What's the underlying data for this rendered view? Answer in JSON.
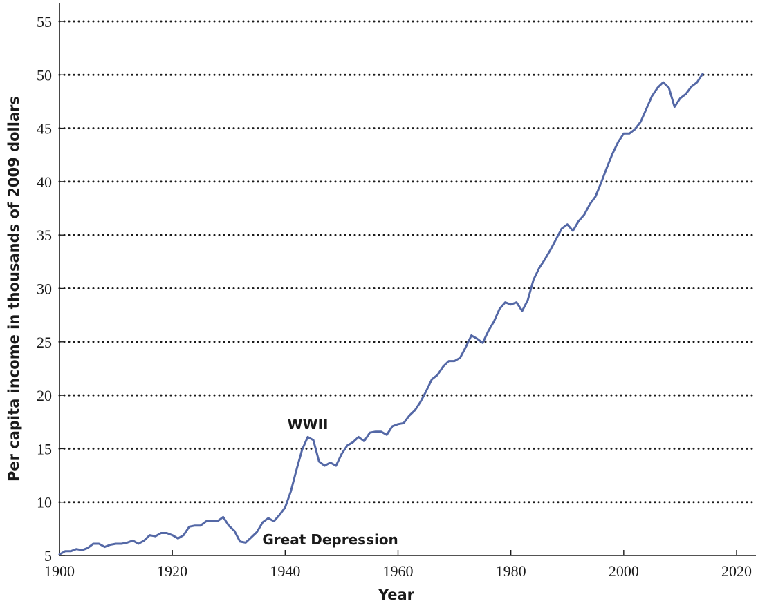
{
  "chart_data": {
    "type": "line",
    "title": "",
    "xlabel": "Year",
    "ylabel": "Per capita income in thousands of 2009 dollars",
    "xlim": [
      1900,
      2023
    ],
    "ylim": [
      5,
      56
    ],
    "x_ticks": [
      1900,
      1920,
      1940,
      1960,
      1980,
      2000,
      2020
    ],
    "y_ticks": [
      5,
      10,
      15,
      20,
      25,
      30,
      35,
      40,
      45,
      50,
      55
    ],
    "grid": "horizontal dotted",
    "line_color": "#5468a6",
    "series": [
      {
        "x": [
          1900,
          1901,
          1902,
          1903,
          1904,
          1905,
          1906,
          1907,
          1908,
          1909,
          1910,
          1911,
          1912,
          1913,
          1914,
          1915,
          1916,
          1917,
          1918,
          1919,
          1920,
          1921,
          1922,
          1923,
          1924,
          1925,
          1926,
          1927,
          1928,
          1929,
          1930,
          1931,
          1932,
          1933,
          1934,
          1935,
          1936,
          1937,
          1938,
          1939,
          1940,
          1941,
          1942,
          1943,
          1944,
          1945,
          1946,
          1947,
          1948,
          1949,
          1950,
          1951,
          1952,
          1953,
          1954,
          1955,
          1956,
          1957,
          1958,
          1959,
          1960,
          1961,
          1962,
          1963,
          1964,
          1965,
          1966,
          1967,
          1968,
          1969,
          1970,
          1971,
          1972,
          1973,
          1974,
          1975,
          1976,
          1977,
          1978,
          1979,
          1980,
          1981,
          1982,
          1983,
          1984,
          1985,
          1986,
          1987,
          1988,
          1989,
          1990,
          1991,
          1992,
          1993,
          1994,
          1995,
          1996,
          1997,
          1998,
          1999,
          2000,
          2001,
          2002,
          2003,
          2004,
          2005,
          2006,
          2007,
          2008,
          2009,
          2010,
          2011,
          2012,
          2013,
          2014
        ],
        "values": [
          5.1,
          5.4,
          5.4,
          5.6,
          5.5,
          5.7,
          6.1,
          6.1,
          5.8,
          6.0,
          6.1,
          6.1,
          6.2,
          6.4,
          6.1,
          6.4,
          6.9,
          6.8,
          7.1,
          7.1,
          6.9,
          6.6,
          6.9,
          7.7,
          7.8,
          7.8,
          8.2,
          8.2,
          8.2,
          8.6,
          7.8,
          7.3,
          6.3,
          6.2,
          6.7,
          7.2,
          8.1,
          8.5,
          8.2,
          8.8,
          9.5,
          11.0,
          13.0,
          14.9,
          16.1,
          15.8,
          13.8,
          13.4,
          13.7,
          13.4,
          14.5,
          15.3,
          15.6,
          16.1,
          15.7,
          16.5,
          16.6,
          16.6,
          16.3,
          17.1,
          17.3,
          17.4,
          18.1,
          18.6,
          19.4,
          20.4,
          21.5,
          21.9,
          22.7,
          23.2,
          23.2,
          23.5,
          24.5,
          25.6,
          25.3,
          24.9,
          26.0,
          26.9,
          28.1,
          28.7,
          28.5,
          28.7,
          27.9,
          28.9,
          30.8,
          31.9,
          32.7,
          33.6,
          34.6,
          35.6,
          36.0,
          35.4,
          36.3,
          36.9,
          37.9,
          38.6,
          39.9,
          41.3,
          42.6,
          43.7,
          44.5,
          44.5,
          44.9,
          45.6,
          46.8,
          48.0,
          48.8,
          49.3,
          48.8,
          47.0,
          47.8,
          48.2,
          48.9,
          49.3,
          50.1
        ]
      }
    ],
    "annotations": [
      {
        "text": "WWII",
        "x": 1944,
        "y": 17.3
      },
      {
        "text": "Great Depression",
        "x": 1948,
        "y": 6.5
      }
    ]
  }
}
